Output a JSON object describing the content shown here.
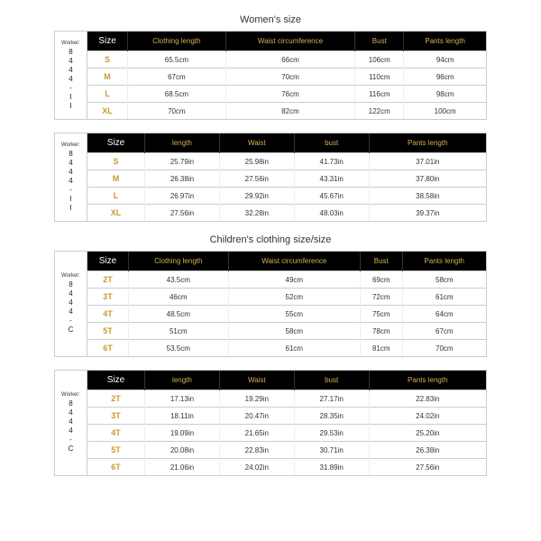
{
  "sections": [
    {
      "title": "Women's size",
      "charts": [
        {
          "sideLabelTop": "Worker:",
          "sideCode": "8444-II",
          "headers": [
            "Size",
            "Clothing length",
            "Waist circumference",
            "Bust",
            "Pants length"
          ],
          "rows": [
            [
              "S",
              "65.5cm",
              "66cm",
              "106cm",
              "94cm"
            ],
            [
              "M",
              "67cm",
              "70cm",
              "110cm",
              "96cm"
            ],
            [
              "L",
              "68.5cm",
              "76cm",
              "116cm",
              "98cm"
            ],
            [
              "XL",
              "70cm",
              "82cm",
              "122cm",
              "100cm"
            ]
          ]
        },
        {
          "sideLabelTop": "Worker:",
          "sideCode": "8444-II",
          "headers": [
            "Size",
            "length",
            "Waist",
            "bust",
            "Pants length"
          ],
          "rows": [
            [
              "S",
              "25.79in",
              "25.98in",
              "41.73in",
              "37.01in"
            ],
            [
              "M",
              "26.38in",
              "27.56in",
              "43.31in",
              "37.80in"
            ],
            [
              "L",
              "26.97in",
              "29.92in",
              "45.67in",
              "38.58in"
            ],
            [
              "XL",
              "27.56in",
              "32.28in",
              "48.03in",
              "39.37in"
            ]
          ]
        }
      ]
    },
    {
      "title": "Children's clothing size/size",
      "charts": [
        {
          "sideLabelTop": "Worker:",
          "sideCode": "8444-C",
          "headers": [
            "Size",
            "Clothing length",
            "Waist circumference",
            "Bust",
            "Pants length"
          ],
          "rows": [
            [
              "2T",
              "43.5cm",
              "49cm",
              "69cm",
              "58cm"
            ],
            [
              "3T",
              "46cm",
              "52cm",
              "72cm",
              "61cm"
            ],
            [
              "4T",
              "48.5cm",
              "55cm",
              "75cm",
              "64cm"
            ],
            [
              "5T",
              "51cm",
              "58cm",
              "78cm",
              "67cm"
            ],
            [
              "6T",
              "53.5cm",
              "61cm",
              "81cm",
              "70cm"
            ]
          ]
        },
        {
          "sideLabelTop": "Worker:",
          "sideCode": "8444-C",
          "headers": [
            "Size",
            "length",
            "Waist",
            "bust",
            "Pants length"
          ],
          "rows": [
            [
              "2T",
              "17.13in",
              "19.29in",
              "27.17in",
              "22.83in"
            ],
            [
              "3T",
              "18.11in",
              "20.47in",
              "28.35in",
              "24.02in"
            ],
            [
              "4T",
              "19.09in",
              "21.65in",
              "29.53in",
              "25.20in"
            ],
            [
              "5T",
              "20.08in",
              "22.83in",
              "30.71in",
              "26.38in"
            ],
            [
              "6T",
              "21.06in",
              "24.02in",
              "31.89in",
              "27.56in"
            ]
          ]
        }
      ]
    }
  ],
  "styling": {
    "header_bg": "#000000",
    "header_text": "#d4b055",
    "size_text": "#c99a2e",
    "cell_text": "#333333",
    "border": "#cccccc",
    "body_bg": "#ffffff",
    "header_fontsize": 8,
    "cell_fontsize": 8,
    "title_fontsize": 11
  }
}
